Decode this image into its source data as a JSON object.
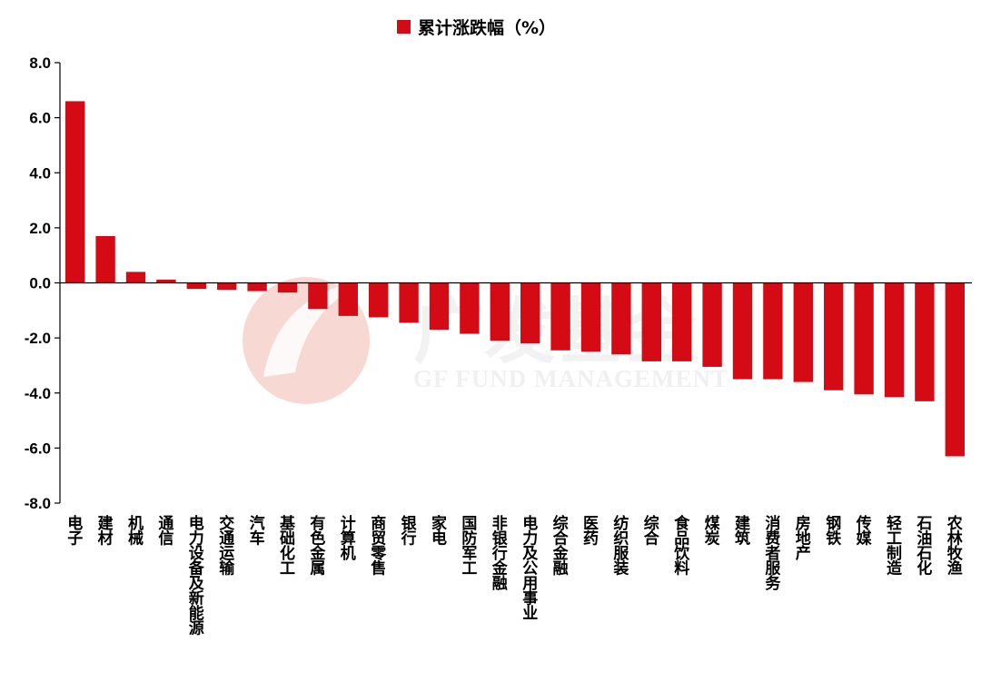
{
  "watermark": {
    "brand": "广发基金",
    "english": "GF FUND MANAGEMENT"
  },
  "colors": {
    "bar": "#d40a15",
    "axis": "#000000",
    "watermark_logo": "#f1b9ae"
  },
  "chart_data": {
    "type": "bar",
    "title": "",
    "xlabel": "",
    "ylabel": "",
    "legend": {
      "position": "top-center",
      "entries": [
        "累计涨跌幅（%）"
      ]
    },
    "grid": false,
    "ylim": [
      -8.0,
      8.0
    ],
    "yticks": [
      8.0,
      6.0,
      4.0,
      2.0,
      0.0,
      -2.0,
      -4.0,
      -6.0,
      -8.0
    ],
    "ytick_labels": [
      "8.0",
      "6.0",
      "4.0",
      "2.0",
      "0.0",
      "-2.0",
      "-4.0",
      "-6.0",
      "-8.0"
    ],
    "categories": [
      "电子",
      "建材",
      "机械",
      "通信",
      "电力设备及新能源",
      "交通运输",
      "汽车",
      "基础化工",
      "有色金属",
      "计算机",
      "商贸零售",
      "银行",
      "家电",
      "国防军工",
      "非银行金融",
      "电力及公用事业",
      "综合金融",
      "医药",
      "纺织服装",
      "综合",
      "食品饮料",
      "煤炭",
      "建筑",
      "消费者服务",
      "房地产",
      "钢铁",
      "传媒",
      "轻工制造",
      "石油石化",
      "农林牧渔"
    ],
    "series": [
      {
        "name": "累计涨跌幅（%）",
        "values": [
          6.6,
          1.7,
          0.4,
          0.12,
          -0.22,
          -0.25,
          -0.3,
          -0.35,
          -0.95,
          -1.2,
          -1.25,
          -1.45,
          -1.7,
          -1.85,
          -2.1,
          -2.2,
          -2.45,
          -2.5,
          -2.6,
          -2.85,
          -2.85,
          -3.05,
          -3.5,
          -3.5,
          -3.6,
          -3.9,
          -4.05,
          -4.15,
          -4.3,
          -6.3
        ]
      }
    ]
  }
}
